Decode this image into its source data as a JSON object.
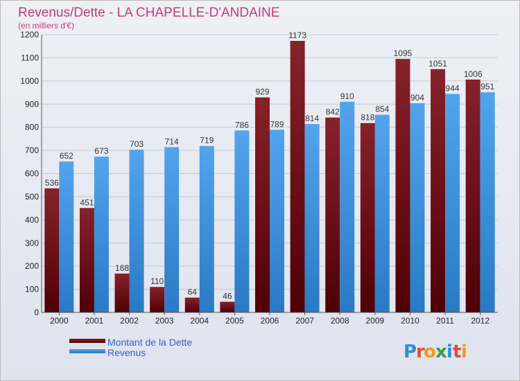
{
  "chart_data": {
    "type": "bar",
    "title": "Revenus/Dette - LA CHAPELLE-D'ANDAINE",
    "subtitle": "(en milliers d'€)",
    "categories": [
      "2000",
      "2001",
      "2002",
      "2003",
      "2004",
      "2005",
      "2006",
      "2007",
      "2008",
      "2009",
      "2010",
      "2011",
      "2012"
    ],
    "series": [
      {
        "name": "Montant de la Dette",
        "color": "#6e0d12",
        "values": [
          536,
          451,
          168,
          110,
          64,
          46,
          929,
          1173,
          842,
          818,
          1095,
          1051,
          1006
        ]
      },
      {
        "name": "Revenus",
        "color": "#3c8fd8",
        "values": [
          652,
          673,
          703,
          714,
          719,
          786,
          789,
          814,
          910,
          854,
          904,
          944,
          951
        ]
      }
    ],
    "ylim": [
      0,
      1200
    ],
    "yticks": [
      0,
      100,
      200,
      300,
      400,
      500,
      600,
      700,
      800,
      900,
      1000,
      1100,
      1200
    ],
    "grid": true,
    "legend_position": "bottom-left"
  },
  "logo_text": "Proxiti"
}
